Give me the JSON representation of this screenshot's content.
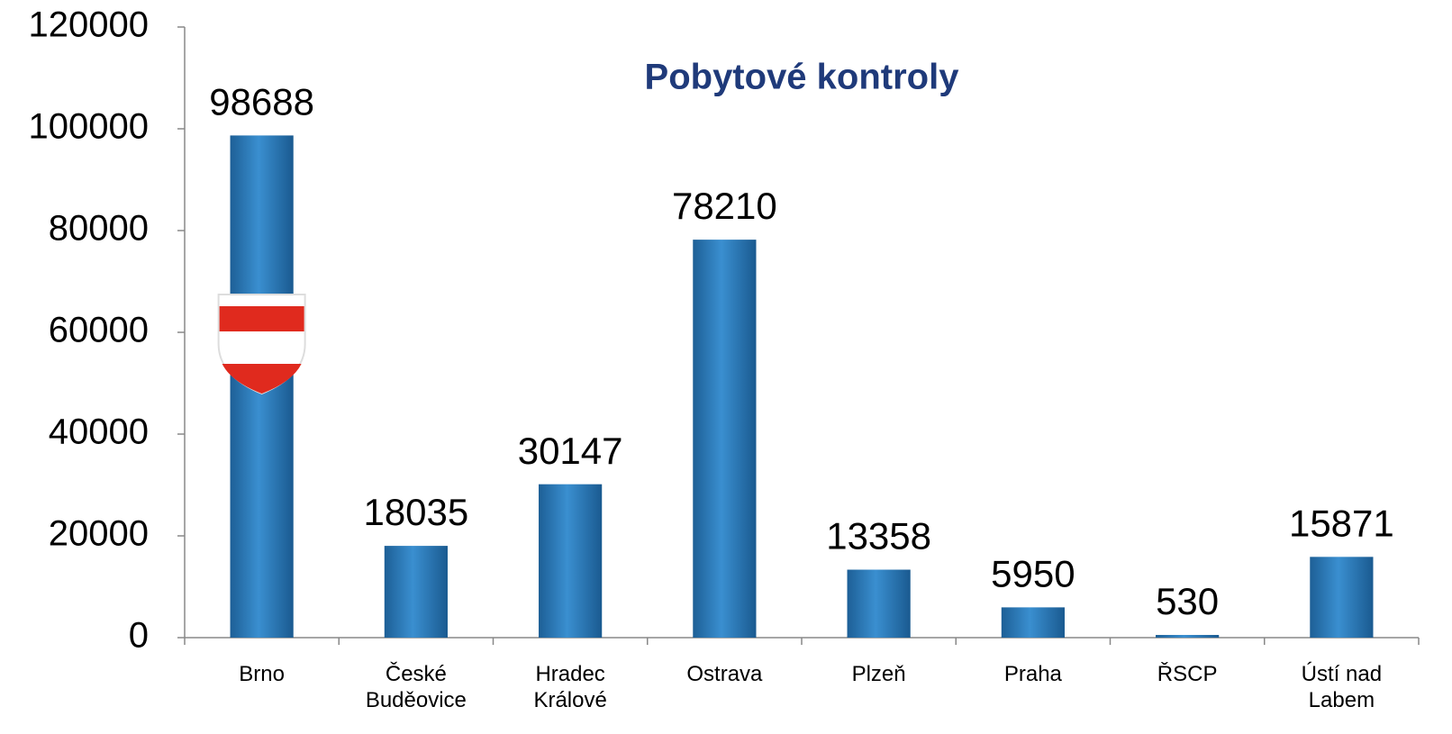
{
  "chart_data": {
    "type": "bar",
    "title": "Pobytové kontroly",
    "categories": [
      "Brno",
      "České Buděovice",
      "Hradec Králové",
      "Ostrava",
      "Plzeň",
      "Praha",
      "ŘSCP",
      "Ústí nad Labem"
    ],
    "values": [
      98688,
      18035,
      30147,
      78210,
      13358,
      5950,
      530,
      15871
    ],
    "color": "#2a7bbd",
    "ylim": [
      0,
      120000
    ],
    "yticks": [
      0,
      20000,
      40000,
      60000,
      80000,
      100000,
      120000
    ],
    "grid": false
  }
}
